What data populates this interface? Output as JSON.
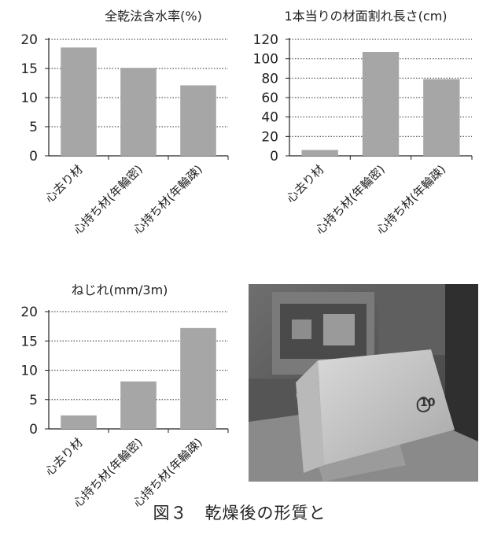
{
  "colors": {
    "bar": "#a6a6a6",
    "axis": "#222222",
    "grid": "#555555"
  },
  "chart_data": [
    {
      "type": "bar",
      "title": "全乾法含水率(%)",
      "xlabel": "",
      "ylabel": "",
      "categories": [
        "心去り材",
        "心持ち材(年輪密)",
        "心持ち材(年輪疎)"
      ],
      "values": [
        18.6,
        15.1,
        12.1
      ],
      "ylim": [
        0,
        20
      ],
      "yticks": [
        0,
        5,
        10,
        15,
        20
      ],
      "grid": "horizontal dotted"
    },
    {
      "type": "bar",
      "title": "1本当りの材面割れ長さ(cm)",
      "xlabel": "",
      "ylabel": "",
      "categories": [
        "心去り材",
        "心持ち材(年輪密)",
        "心持ち材(年輪疎)"
      ],
      "values": [
        6,
        107,
        79
      ],
      "ylim": [
        0,
        120
      ],
      "yticks": [
        0,
        20,
        40,
        60,
        80,
        100,
        120
      ],
      "grid": "horizontal dotted"
    },
    {
      "type": "bar",
      "title": "ねじれ(mm/3m)",
      "xlabel": "",
      "ylabel": "",
      "categories": [
        "心去り材",
        "心持ち材(年輪密)",
        "心持ち材(年輪疎)"
      ],
      "values": [
        2.3,
        8.1,
        17.2
      ],
      "ylim": [
        0,
        20
      ],
      "yticks": [
        0,
        5,
        10,
        15,
        20
      ],
      "grid": "horizontal dotted"
    }
  ],
  "photo": {
    "marking": "10"
  },
  "caption": "図３　乾燥後の形質と"
}
